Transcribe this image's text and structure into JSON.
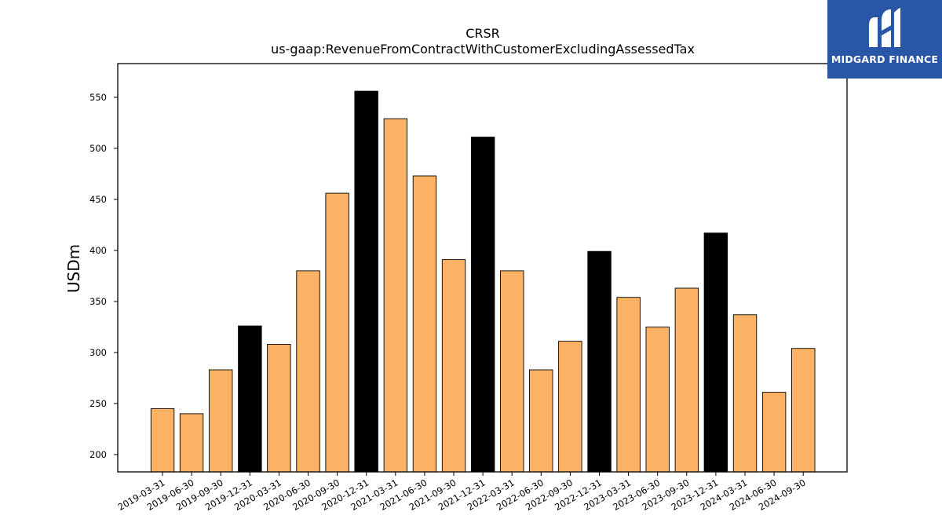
{
  "chart_data": {
    "type": "bar",
    "title": "CRSR",
    "subtitle": "us-gaap:RevenueFromContractWithCustomerExcludingAssessedTax",
    "xlabel": "",
    "ylabel": "USDm",
    "ylim": [
      183,
      583
    ],
    "yticks": [
      200,
      250,
      300,
      350,
      400,
      450,
      500,
      550
    ],
    "grid": false,
    "categories": [
      "2019-03-31",
      "2019-06-30",
      "2019-09-30",
      "2019-12-31",
      "2020-03-31",
      "2020-06-30",
      "2020-09-30",
      "2020-12-31",
      "2021-03-31",
      "2021-06-30",
      "2021-09-30",
      "2021-12-31",
      "2022-03-31",
      "2022-06-30",
      "2022-09-30",
      "2022-12-31",
      "2023-03-31",
      "2023-06-30",
      "2023-09-30",
      "2023-12-31",
      "2024-03-31",
      "2024-06-30",
      "2024-09-30"
    ],
    "values": [
      245,
      240,
      283,
      326,
      308,
      380,
      456,
      556,
      529,
      473,
      391,
      511,
      380,
      283,
      311,
      399,
      354,
      325,
      363,
      417,
      337,
      261,
      304
    ],
    "highlighted": [
      "2019-12-31",
      "2020-12-31",
      "2021-12-31",
      "2022-12-31",
      "2023-12-31"
    ],
    "colors": {
      "default": "#fbb264",
      "highlight": "#000000",
      "edge": "#000000"
    }
  },
  "logo": {
    "text": "MIDGARD FINANCE",
    "background": "#2a56a8"
  }
}
